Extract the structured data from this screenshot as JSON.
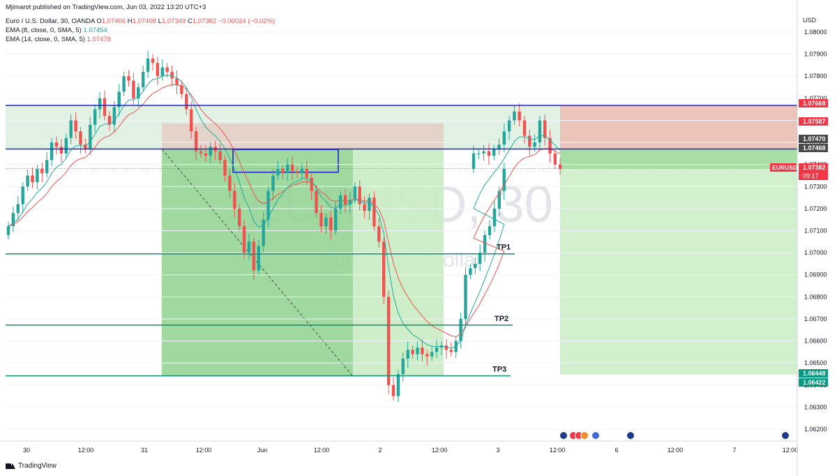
{
  "header": {
    "publisher": "Mjimarot published on TradingView.com, Jun 03, 2022 13:20 UTC+3",
    "symbol": "Euro / U.S. Dollar, 30, OANDA",
    "o_label": "O",
    "o": "1.07406",
    "h_label": "H",
    "h": "1.07408",
    "l_label": "L",
    "l": "1.07349",
    "c_label": "C",
    "c": "1.07382",
    "change": "−0.00024 (−0.02%)",
    "ema8_label": "EMA (8, close, 0, SMA, 5)",
    "ema8_value": "1.07454",
    "ema14_label": "EMA (14, close, 0, SMA, 5)",
    "ema14_value": "1.07478"
  },
  "watermark": {
    "ticker": "EURUSD, 30",
    "name": "Euro / U.S. Dollar"
  },
  "branding": "TradingView",
  "chart_data": {
    "type": "candlestick",
    "currency": "USD",
    "y_ticks": [
      "1.08000",
      "1.07900",
      "1.07800",
      "1.07700",
      "1.07600",
      "1.07500",
      "1.07400",
      "1.07300",
      "1.07200",
      "1.07100",
      "1.07000",
      "1.06900",
      "1.06800",
      "1.06700",
      "1.06600",
      "1.06500",
      "1.06400",
      "1.06300",
      "1.06200"
    ],
    "x_ticks": [
      "30",
      "12:00",
      "31",
      "12:00",
      "Jun",
      "12:00",
      "2",
      "12:00",
      "3",
      "12:00",
      "6",
      "12:00",
      "7",
      "12:00"
    ],
    "ylim": [
      1.0615,
      1.0808
    ],
    "price_labels": [
      {
        "text": "1.07668",
        "color": "#f23645"
      },
      {
        "text": "1.07587",
        "color": "#f23645"
      },
      {
        "text": "1.07470",
        "color": "#4a4a4a"
      },
      {
        "text": "1.07468",
        "color": "#4a4a4a"
      },
      {
        "text": "1.06448",
        "color": "#089981"
      },
      {
        "text": "1.06422",
        "color": "#089981"
      }
    ],
    "current_price": {
      "symbol": "EURUSD",
      "price": "1.07382",
      "countdown": "09:17",
      "color": "#f23645"
    },
    "horizontal_lines": [
      {
        "price": 1.07668,
        "color": "#1e22c8"
      },
      {
        "price": 1.0747,
        "color": "#1e22c8"
      },
      {
        "price": 1.06995,
        "color": "#0e8f76",
        "label": "TP1"
      },
      {
        "price": 1.06672,
        "color": "#0e8f76",
        "label": "TP2"
      },
      {
        "price": 1.06442,
        "color": "#0e8f76",
        "label": "TP3"
      }
    ],
    "candles_close": [
      1.0712,
      1.0718,
      1.0722,
      1.073,
      1.0735,
      1.0732,
      1.0738,
      1.0736,
      1.0742,
      1.075,
      1.0748,
      1.0745,
      1.0752,
      1.076,
      1.0755,
      1.0749,
      1.0747,
      1.0758,
      1.0765,
      1.077,
      1.0762,
      1.0758,
      1.0766,
      1.0773,
      1.078,
      1.0778,
      1.077,
      1.0775,
      1.0782,
      1.0788,
      1.0786,
      1.078,
      1.0784,
      1.0782,
      1.0779,
      1.0776,
      1.0772,
      1.0765,
      1.0755,
      1.0746,
      1.0745,
      1.0744,
      1.0748,
      1.0746,
      1.0742,
      1.0735,
      1.0728,
      1.072,
      1.0712,
      1.07,
      1.0705,
      1.0692,
      1.0703,
      1.0715,
      1.0728,
      1.0735,
      1.0738,
      1.0736,
      1.074,
      1.0737,
      1.0736,
      1.0738,
      1.0734,
      1.0728,
      1.0718,
      1.0712,
      1.0716,
      1.071,
      1.072,
      1.0726,
      1.0722,
      1.0724,
      1.073,
      1.0722,
      1.0719,
      1.0725,
      1.0712,
      1.0705,
      1.068,
      1.064,
      1.0635,
      1.0645,
      1.0652,
      1.0656,
      1.0654,
      1.0657,
      1.0654,
      1.0653,
      1.0655,
      1.0657,
      1.0658,
      1.0656,
      1.0655,
      1.066,
      1.067,
      1.069,
      1.0693,
      1.0695,
      1.07,
      1.0708,
      1.0712,
      1.072,
      1.0728,
      1.0738,
      1.0745,
      1.0745,
      1.0746,
      1.0744,
      1.0747,
      1.0749,
      1.0755,
      1.076,
      1.0764,
      1.076,
      1.0753,
      1.0748,
      1.075,
      1.076,
      1.0752,
      1.0745,
      1.074,
      1.0738
    ],
    "ema8_color": "#26a69a",
    "ema14_color": "#ef5350",
    "events_count": 5
  }
}
